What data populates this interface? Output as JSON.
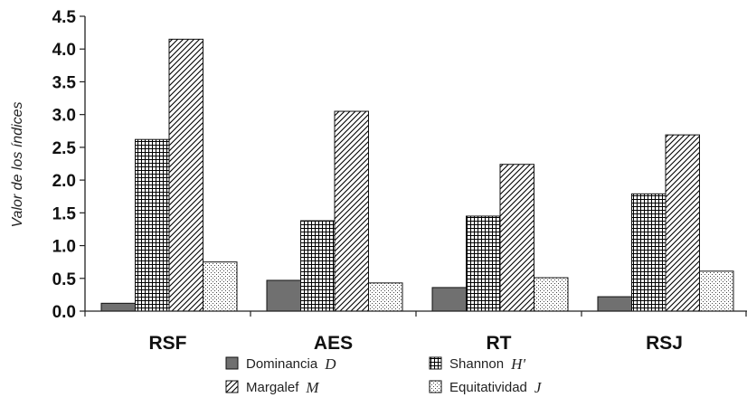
{
  "chart_data": {
    "type": "bar",
    "ylabel": "Valor de los índices",
    "xlabel": "",
    "ylim": [
      0,
      4.5
    ],
    "yticks": [
      "0.0",
      "0.5",
      "1.0",
      "1.5",
      "2.0",
      "2.5",
      "3.0",
      "3.5",
      "4.0",
      "4.5"
    ],
    "categories": [
      "RSF",
      "AES",
      "RT",
      "RSJ"
    ],
    "series": [
      {
        "name": "Dominancia",
        "symbol": "D",
        "pattern": "solid-gray",
        "values": [
          0.12,
          0.47,
          0.36,
          0.22
        ]
      },
      {
        "name": "Shannon",
        "symbol": "H'",
        "pattern": "grid",
        "values": [
          2.62,
          1.38,
          1.45,
          1.79
        ]
      },
      {
        "name": "Margalef",
        "symbol": "M",
        "pattern": "diagonal",
        "values": [
          4.15,
          3.05,
          2.24,
          2.69
        ]
      },
      {
        "name": "Equitatividad",
        "symbol": "J",
        "pattern": "dots",
        "values": [
          0.75,
          0.43,
          0.51,
          0.61
        ]
      }
    ],
    "grid": false,
    "legend": "bottom"
  },
  "colors": {
    "dominancia_fill": "#707070",
    "axis": "#222222"
  }
}
